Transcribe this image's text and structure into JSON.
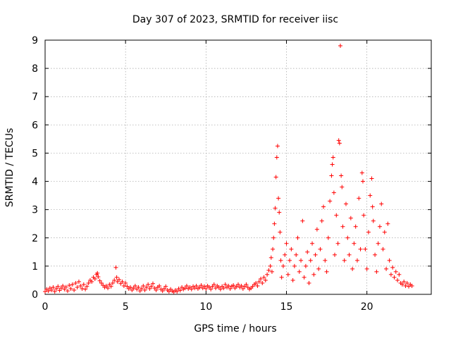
{
  "chart_data": {
    "type": "scatter",
    "title": "Day 307 of 2023, SRMTID for receiver iisc",
    "xlabel": "GPS time / hours",
    "ylabel": "SRMTID / TECUs",
    "xlim": [
      0,
      24
    ],
    "ylim": [
      0,
      9
    ],
    "xticks": [
      0,
      5,
      10,
      15,
      20
    ],
    "xtick_labels": [
      "0",
      "5",
      "10",
      "15",
      "20"
    ],
    "yticks": [
      0,
      1,
      2,
      3,
      4,
      5,
      6,
      7,
      8,
      9
    ],
    "ytick_labels": [
      "0",
      "1",
      "2",
      "3",
      "4",
      "5",
      "6",
      "7",
      "8",
      "9"
    ],
    "grid": true,
    "marker": "+",
    "color": "#ff0000",
    "series": [
      {
        "name": "SRMTID",
        "points": [
          [
            0.0,
            0.1
          ],
          [
            0.1,
            0.18
          ],
          [
            0.2,
            0.12
          ],
          [
            0.3,
            0.22
          ],
          [
            0.4,
            0.15
          ],
          [
            0.5,
            0.25
          ],
          [
            0.6,
            0.1
          ],
          [
            0.7,
            0.2
          ],
          [
            0.8,
            0.28
          ],
          [
            0.9,
            0.14
          ],
          [
            1.0,
            0.22
          ],
          [
            1.1,
            0.3
          ],
          [
            1.2,
            0.18
          ],
          [
            1.3,
            0.26
          ],
          [
            1.4,
            0.12
          ],
          [
            1.5,
            0.32
          ],
          [
            1.6,
            0.2
          ],
          [
            1.7,
            0.35
          ],
          [
            1.8,
            0.15
          ],
          [
            1.9,
            0.4
          ],
          [
            2.0,
            0.25
          ],
          [
            2.1,
            0.45
          ],
          [
            2.2,
            0.3
          ],
          [
            2.3,
            0.2
          ],
          [
            2.4,
            0.35
          ],
          [
            2.5,
            0.18
          ],
          [
            2.6,
            0.28
          ],
          [
            2.7,
            0.4
          ],
          [
            2.8,
            0.5
          ],
          [
            2.9,
            0.45
          ],
          [
            3.0,
            0.6
          ],
          [
            3.1,
            0.55
          ],
          [
            3.2,
            0.7
          ],
          [
            3.25,
            0.75
          ],
          [
            3.3,
            0.62
          ],
          [
            3.4,
            0.48
          ],
          [
            3.5,
            0.4
          ],
          [
            3.6,
            0.32
          ],
          [
            3.7,
            0.25
          ],
          [
            3.8,
            0.3
          ],
          [
            3.9,
            0.22
          ],
          [
            4.0,
            0.35
          ],
          [
            4.1,
            0.28
          ],
          [
            4.2,
            0.4
          ],
          [
            4.3,
            0.5
          ],
          [
            4.4,
            0.95
          ],
          [
            4.45,
            0.6
          ],
          [
            4.5,
            0.45
          ],
          [
            4.6,
            0.52
          ],
          [
            4.7,
            0.38
          ],
          [
            4.8,
            0.45
          ],
          [
            4.9,
            0.3
          ],
          [
            5.0,
            0.4
          ],
          [
            5.1,
            0.28
          ],
          [
            5.2,
            0.2
          ],
          [
            5.3,
            0.25
          ],
          [
            5.4,
            0.15
          ],
          [
            5.5,
            0.22
          ],
          [
            5.6,
            0.3
          ],
          [
            5.7,
            0.18
          ],
          [
            5.8,
            0.25
          ],
          [
            5.9,
            0.12
          ],
          [
            6.0,
            0.2
          ],
          [
            6.1,
            0.3
          ],
          [
            6.2,
            0.15
          ],
          [
            6.3,
            0.25
          ],
          [
            6.4,
            0.35
          ],
          [
            6.5,
            0.2
          ],
          [
            6.6,
            0.28
          ],
          [
            6.7,
            0.38
          ],
          [
            6.8,
            0.22
          ],
          [
            6.9,
            0.15
          ],
          [
            7.0,
            0.25
          ],
          [
            7.1,
            0.3
          ],
          [
            7.2,
            0.18
          ],
          [
            7.3,
            0.12
          ],
          [
            7.4,
            0.2
          ],
          [
            7.5,
            0.28
          ],
          [
            7.6,
            0.15
          ],
          [
            7.7,
            0.1
          ],
          [
            7.8,
            0.18
          ],
          [
            7.9,
            0.12
          ],
          [
            8.0,
            0.08
          ],
          [
            8.1,
            0.15
          ],
          [
            8.2,
            0.1
          ],
          [
            8.3,
            0.2
          ],
          [
            8.4,
            0.14
          ],
          [
            8.5,
            0.25
          ],
          [
            8.6,
            0.18
          ],
          [
            8.7,
            0.22
          ],
          [
            8.8,
            0.3
          ],
          [
            8.9,
            0.2
          ],
          [
            9.0,
            0.25
          ],
          [
            9.1,
            0.18
          ],
          [
            9.2,
            0.28
          ],
          [
            9.3,
            0.22
          ],
          [
            9.4,
            0.3
          ],
          [
            9.5,
            0.2
          ],
          [
            9.6,
            0.25
          ],
          [
            9.7,
            0.32
          ],
          [
            9.8,
            0.22
          ],
          [
            9.9,
            0.28
          ],
          [
            10.0,
            0.2
          ],
          [
            10.1,
            0.3
          ],
          [
            10.2,
            0.25
          ],
          [
            10.3,
            0.18
          ],
          [
            10.4,
            0.28
          ],
          [
            10.5,
            0.35
          ],
          [
            10.6,
            0.22
          ],
          [
            10.7,
            0.3
          ],
          [
            10.8,
            0.25
          ],
          [
            10.9,
            0.18
          ],
          [
            11.0,
            0.28
          ],
          [
            11.1,
            0.22
          ],
          [
            11.2,
            0.35
          ],
          [
            11.3,
            0.25
          ],
          [
            11.4,
            0.3
          ],
          [
            11.5,
            0.2
          ],
          [
            11.6,
            0.28
          ],
          [
            11.7,
            0.32
          ],
          [
            11.8,
            0.22
          ],
          [
            11.9,
            0.28
          ],
          [
            12.0,
            0.35
          ],
          [
            12.1,
            0.25
          ],
          [
            12.2,
            0.3
          ],
          [
            12.3,
            0.2
          ],
          [
            12.4,
            0.28
          ],
          [
            12.5,
            0.35
          ],
          [
            12.6,
            0.25
          ],
          [
            12.7,
            0.18
          ],
          [
            12.8,
            0.22
          ],
          [
            12.9,
            0.28
          ],
          [
            13.0,
            0.35
          ],
          [
            13.1,
            0.4
          ],
          [
            13.2,
            0.3
          ],
          [
            13.3,
            0.45
          ],
          [
            13.4,
            0.55
          ],
          [
            13.5,
            0.4
          ],
          [
            13.6,
            0.6
          ],
          [
            13.7,
            0.5
          ],
          [
            13.8,
            0.7
          ],
          [
            13.9,
            0.85
          ],
          [
            14.0,
            1.0
          ],
          [
            14.05,
            1.3
          ],
          [
            14.1,
            0.8
          ],
          [
            14.15,
            1.6
          ],
          [
            14.2,
            2.0
          ],
          [
            14.25,
            2.5
          ],
          [
            14.3,
            3.05
          ],
          [
            14.35,
            4.15
          ],
          [
            14.4,
            4.85
          ],
          [
            14.45,
            5.25
          ],
          [
            14.5,
            3.4
          ],
          [
            14.55,
            2.9
          ],
          [
            14.6,
            2.2
          ],
          [
            14.65,
            1.2
          ],
          [
            14.7,
            0.6
          ],
          [
            14.8,
            1.0
          ],
          [
            14.9,
            1.4
          ],
          [
            15.0,
            1.8
          ],
          [
            15.1,
            0.7
          ],
          [
            15.2,
            1.2
          ],
          [
            15.3,
            1.6
          ],
          [
            15.4,
            0.5
          ],
          [
            15.5,
            1.0
          ],
          [
            15.6,
            1.4
          ],
          [
            15.7,
            2.0
          ],
          [
            15.8,
            0.8
          ],
          [
            15.9,
            1.2
          ],
          [
            16.0,
            2.6
          ],
          [
            16.1,
            0.6
          ],
          [
            16.2,
            1.0
          ],
          [
            16.3,
            1.5
          ],
          [
            16.4,
            0.4
          ],
          [
            16.5,
            1.2
          ],
          [
            16.6,
            1.8
          ],
          [
            16.7,
            0.7
          ],
          [
            16.8,
            1.4
          ],
          [
            16.9,
            2.3
          ],
          [
            17.0,
            0.9
          ],
          [
            17.1,
            1.6
          ],
          [
            17.2,
            2.6
          ],
          [
            17.3,
            3.1
          ],
          [
            17.4,
            1.2
          ],
          [
            17.5,
            0.8
          ],
          [
            17.6,
            2.0
          ],
          [
            17.7,
            3.3
          ],
          [
            17.8,
            4.2
          ],
          [
            17.85,
            4.6
          ],
          [
            17.9,
            4.85
          ],
          [
            17.95,
            3.6
          ],
          [
            18.0,
            1.4
          ],
          [
            18.1,
            2.8
          ],
          [
            18.2,
            1.8
          ],
          [
            18.25,
            5.45
          ],
          [
            18.3,
            5.35
          ],
          [
            18.35,
            8.8
          ],
          [
            18.4,
            4.2
          ],
          [
            18.45,
            3.8
          ],
          [
            18.5,
            2.4
          ],
          [
            18.6,
            1.2
          ],
          [
            18.7,
            3.2
          ],
          [
            18.8,
            2.0
          ],
          [
            18.9,
            1.4
          ],
          [
            19.0,
            2.7
          ],
          [
            19.1,
            0.9
          ],
          [
            19.2,
            1.8
          ],
          [
            19.3,
            2.4
          ],
          [
            19.4,
            1.2
          ],
          [
            19.5,
            3.4
          ],
          [
            19.6,
            1.6
          ],
          [
            19.7,
            4.3
          ],
          [
            19.75,
            4.0
          ],
          [
            19.8,
            2.8
          ],
          [
            19.9,
            1.6
          ],
          [
            20.0,
            0.9
          ],
          [
            20.1,
            2.2
          ],
          [
            20.2,
            3.5
          ],
          [
            20.3,
            4.1
          ],
          [
            20.35,
            3.1
          ],
          [
            20.4,
            2.6
          ],
          [
            20.5,
            1.4
          ],
          [
            20.6,
            0.8
          ],
          [
            20.7,
            1.8
          ],
          [
            20.8,
            2.4
          ],
          [
            20.9,
            3.2
          ],
          [
            21.0,
            1.6
          ],
          [
            21.1,
            2.2
          ],
          [
            21.2,
            0.9
          ],
          [
            21.3,
            2.5
          ],
          [
            21.4,
            1.2
          ],
          [
            21.5,
            0.7
          ],
          [
            21.6,
            0.95
          ],
          [
            21.7,
            0.6
          ],
          [
            21.8,
            0.8
          ],
          [
            21.9,
            0.5
          ],
          [
            22.0,
            0.7
          ],
          [
            22.1,
            0.4
          ],
          [
            22.2,
            0.35
          ],
          [
            22.3,
            0.45
          ],
          [
            22.4,
            0.3
          ],
          [
            22.5,
            0.4
          ],
          [
            22.6,
            0.28
          ],
          [
            22.7,
            0.35
          ],
          [
            22.8,
            0.3
          ]
        ]
      }
    ]
  }
}
